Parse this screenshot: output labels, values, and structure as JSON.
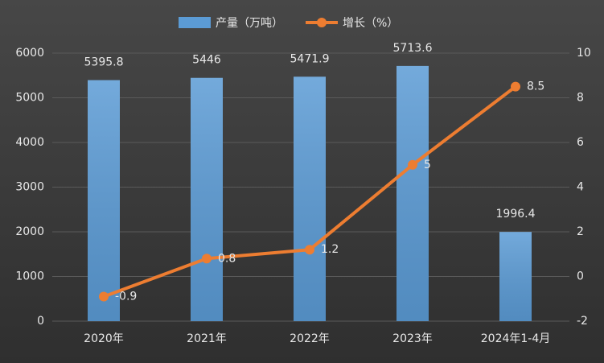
{
  "chart_data": {
    "type": "bar-line",
    "categories": [
      "2020年",
      "2021年",
      "2022年",
      "2023年",
      "2024年1-4月"
    ],
    "series": [
      {
        "name": "产量（万吨）",
        "type": "bar",
        "color": "#5b9bd5",
        "values": [
          5395.8,
          5446,
          5471.9,
          5713.6,
          1996.4
        ]
      },
      {
        "name": "增长（%）",
        "type": "line",
        "axis": "y2",
        "color": "#ed7d31",
        "values": [
          -0.9,
          0.8,
          1.2,
          5,
          8.5
        ]
      }
    ],
    "ylim": [
      0,
      6000
    ],
    "yticks": [
      0,
      1000,
      2000,
      3000,
      4000,
      5000,
      6000
    ],
    "y2lim": [
      -2,
      10
    ],
    "y2ticks": [
      -2,
      0,
      2,
      4,
      6,
      8,
      10
    ],
    "grid": true
  }
}
